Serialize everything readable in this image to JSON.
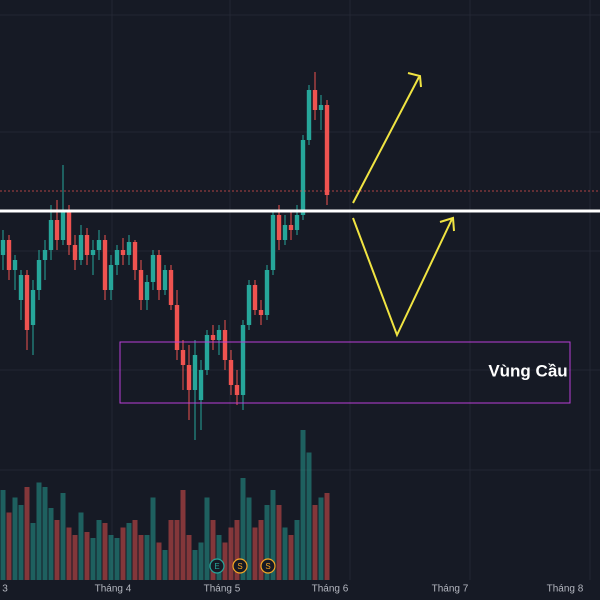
{
  "chart_data": {
    "type": "candlestick",
    "x_labels": [
      "3",
      "Tháng 4",
      "Tháng 5",
      "Tháng 6",
      "Tháng 7",
      "Tháng 8"
    ],
    "open": [
      345,
      360,
      330,
      300,
      325,
      275,
      310,
      340,
      350,
      380,
      360,
      390,
      355,
      340,
      365,
      345,
      350,
      360,
      310,
      335,
      350,
      345,
      358,
      330,
      300,
      318,
      345,
      310,
      330,
      295,
      250,
      235,
      210,
      200,
      230,
      265,
      260,
      270,
      240,
      215,
      205,
      275,
      315,
      290,
      285,
      330,
      385,
      360,
      375,
      370,
      385,
      460,
      510,
      490,
      495
    ],
    "high": [
      370,
      365,
      345,
      330,
      330,
      320,
      350,
      360,
      395,
      400,
      435,
      395,
      365,
      375,
      372,
      360,
      370,
      365,
      345,
      355,
      362,
      365,
      360,
      340,
      325,
      350,
      350,
      335,
      335,
      310,
      260,
      255,
      260,
      240,
      270,
      275,
      275,
      280,
      250,
      230,
      280,
      320,
      320,
      300,
      335,
      390,
      395,
      385,
      390,
      395,
      465,
      515,
      528,
      505,
      500
    ],
    "low": [
      330,
      320,
      310,
      280,
      250,
      245,
      300,
      320,
      340,
      350,
      355,
      345,
      330,
      335,
      335,
      325,
      340,
      300,
      300,
      325,
      335,
      335,
      320,
      290,
      290,
      310,
      300,
      305,
      290,
      240,
      210,
      180,
      160,
      170,
      225,
      250,
      245,
      230,
      205,
      195,
      190,
      270,
      285,
      275,
      280,
      325,
      350,
      355,
      360,
      365,
      380,
      455,
      480,
      470,
      395
    ],
    "close": [
      360,
      330,
      340,
      325,
      270,
      310,
      340,
      350,
      380,
      360,
      390,
      355,
      340,
      365,
      345,
      350,
      360,
      310,
      335,
      350,
      345,
      358,
      330,
      300,
      318,
      345,
      310,
      330,
      295,
      250,
      235,
      210,
      245,
      230,
      265,
      260,
      270,
      240,
      215,
      205,
      275,
      315,
      290,
      285,
      330,
      385,
      360,
      375,
      370,
      385,
      460,
      510,
      490,
      495,
      405
    ],
    "volume": [
      60,
      45,
      55,
      50,
      62,
      38,
      65,
      62,
      48,
      40,
      58,
      35,
      30,
      45,
      32,
      28,
      40,
      38,
      30,
      28,
      35,
      38,
      40,
      30,
      30,
      55,
      25,
      20,
      40,
      40,
      60,
      30,
      20,
      25,
      55,
      40,
      30,
      25,
      35,
      40,
      68,
      55,
      35,
      40,
      50,
      60,
      50,
      35,
      30,
      40,
      100,
      85,
      50,
      55,
      58
    ],
    "ylim": [
      0,
      600
    ],
    "volume_lim": [
      0,
      100
    ],
    "up_color": "#26a69a",
    "down_color": "#ef5350",
    "annotation": "Vùng Cầu",
    "events": [
      "E",
      "S",
      "S"
    ]
  }
}
